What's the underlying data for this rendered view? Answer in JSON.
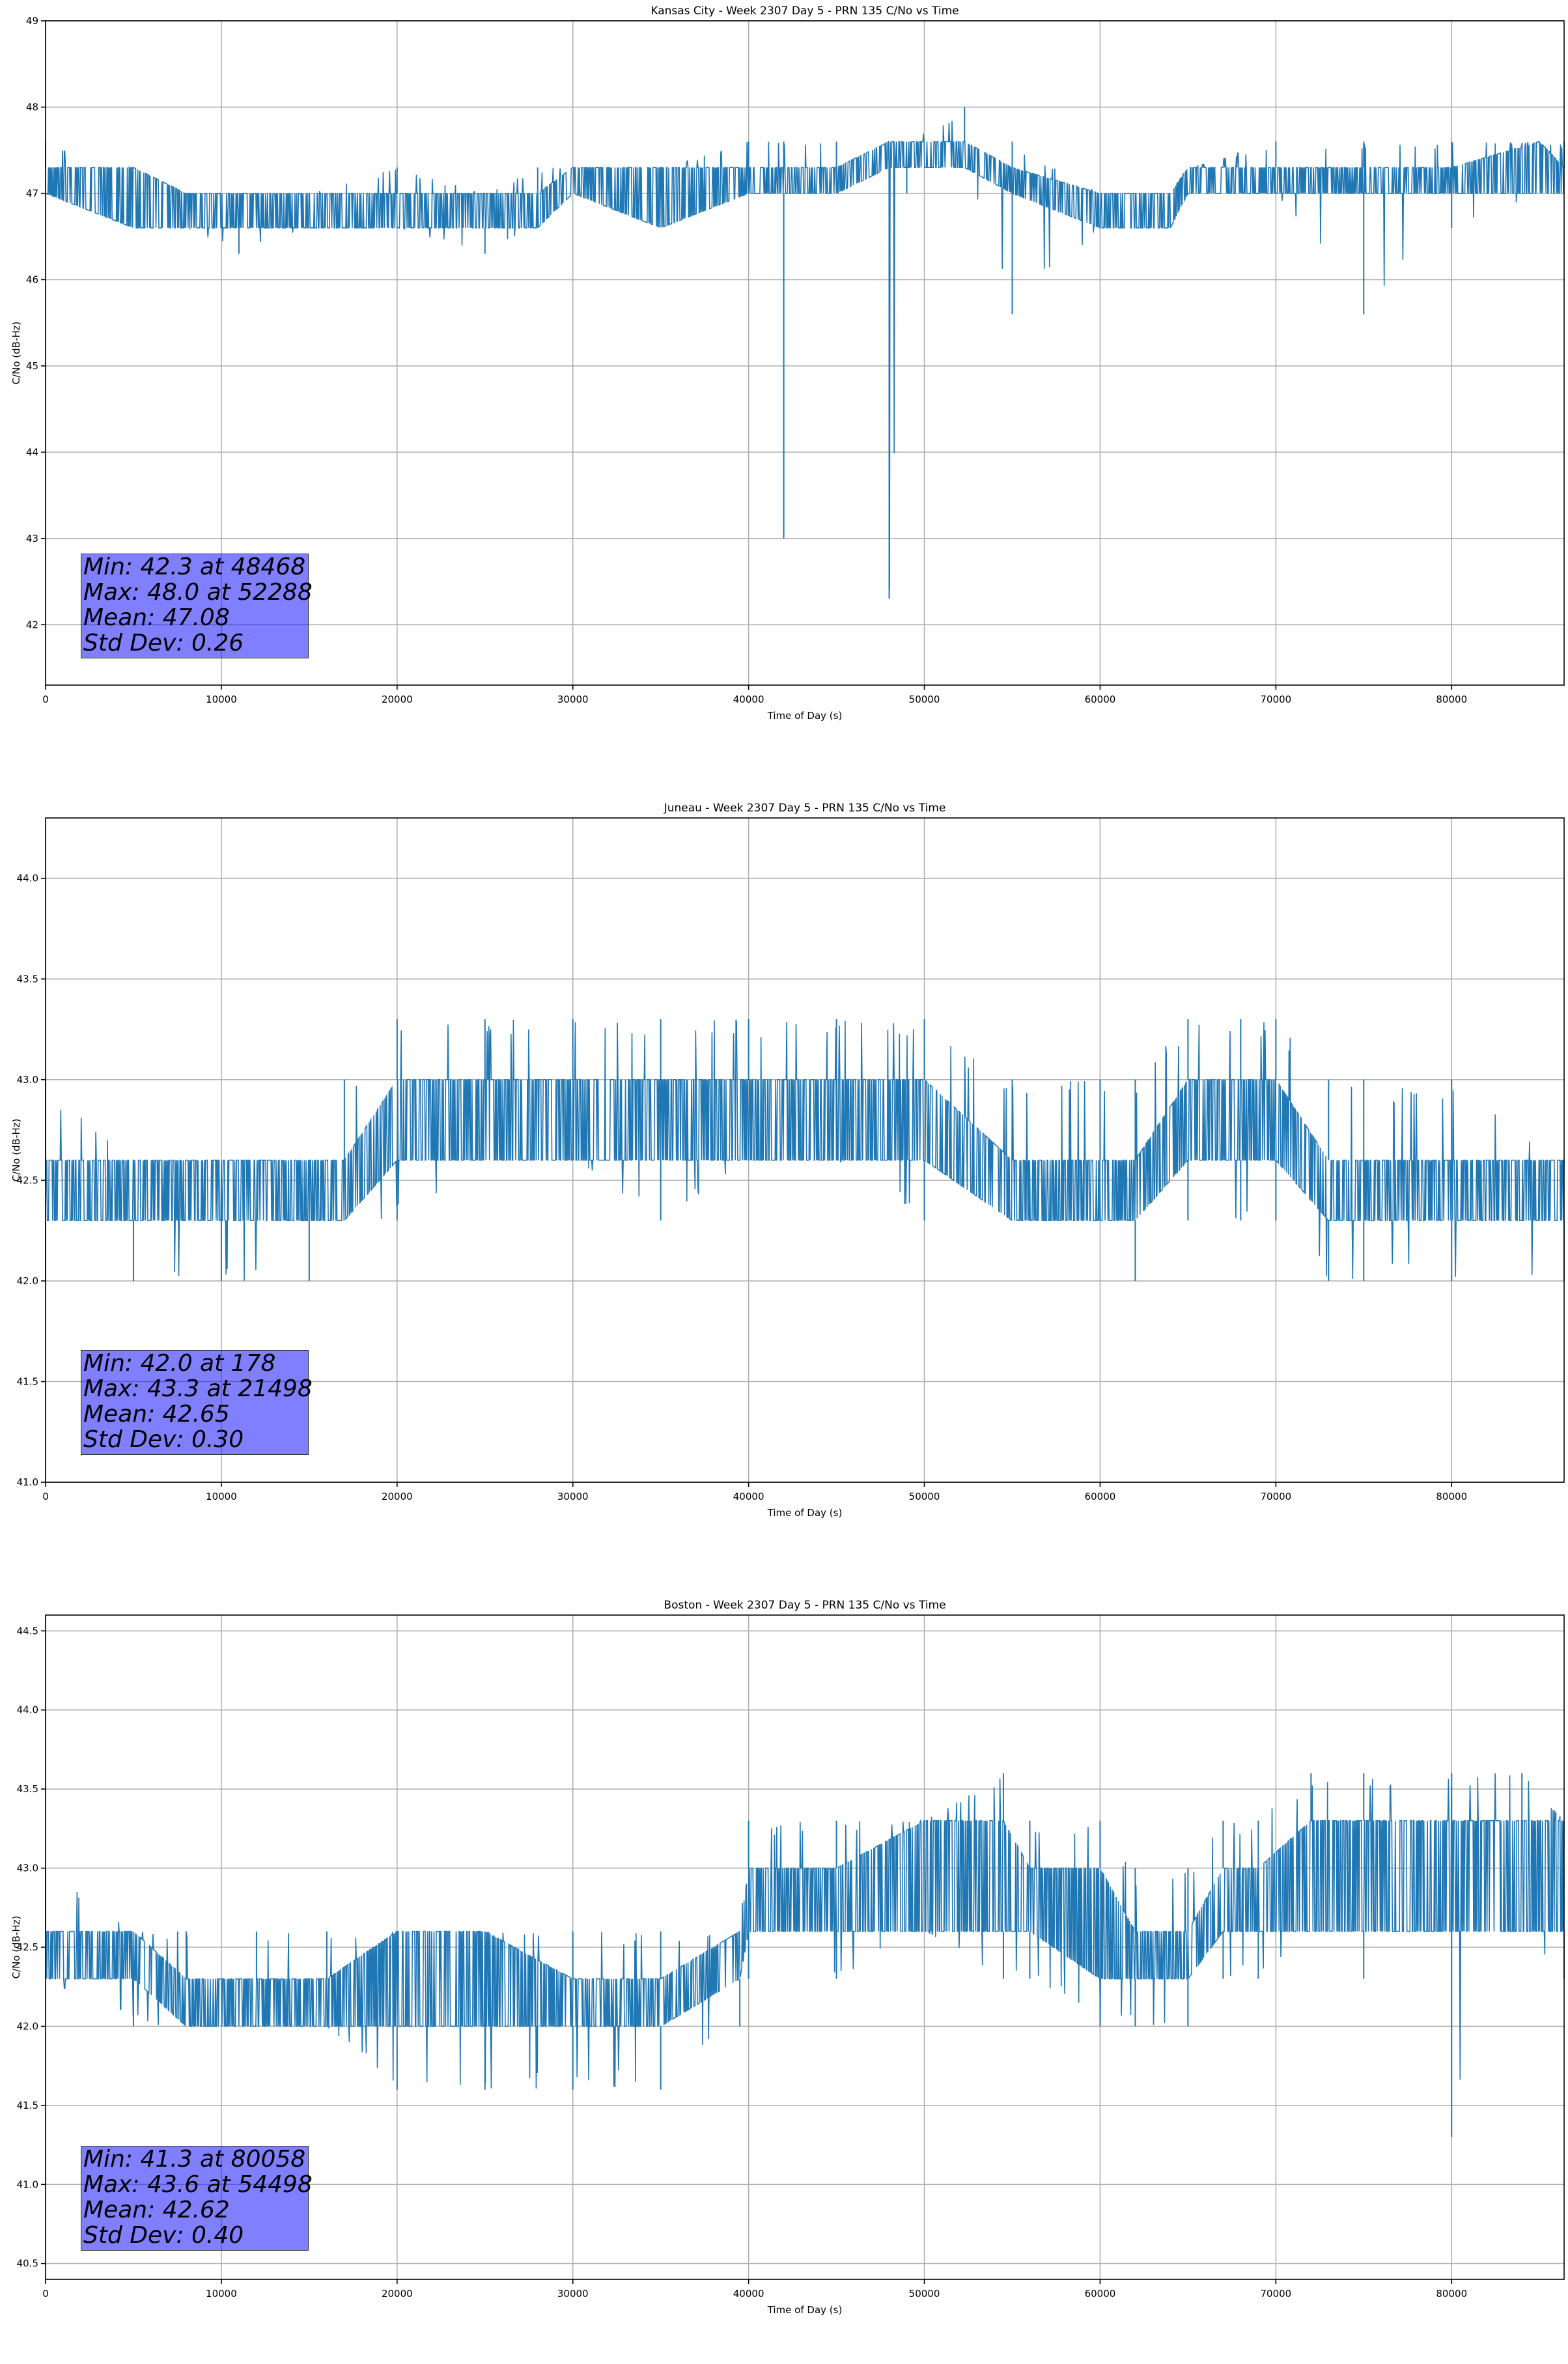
{
  "figure": {
    "colors": {
      "line": "#1f77b4",
      "grid": "#b0b0b0",
      "stats_box": "#8080ff"
    }
  },
  "chart_data": [
    {
      "type": "line",
      "title": "Kansas City - Week 2307 Day 5 - PRN 135 C/No vs Time",
      "xlabel": "Time of Day (s)",
      "ylabel": "C/No (dB-Hz)",
      "xlim": [
        0,
        86400
      ],
      "ylim": [
        41.3,
        49.0
      ],
      "xticks": [
        0,
        10000,
        20000,
        30000,
        40000,
        50000,
        60000,
        70000,
        80000
      ],
      "xtick_labels": [
        "0",
        "10000",
        "20000",
        "30000",
        "40000",
        "50000",
        "60000",
        "70000",
        "80000"
      ],
      "yticks": [
        42,
        43,
        44,
        45,
        46,
        47,
        48,
        49
      ],
      "ytick_labels": [
        "42",
        "43",
        "44",
        "45",
        "46",
        "47",
        "48",
        "49"
      ],
      "grid": true,
      "series": [
        {
          "x": [
            0,
            5000,
            8000,
            11000,
            15000,
            20000,
            25000,
            28000,
            30000,
            35000,
            40000,
            42000,
            45000,
            48000,
            49000,
            52288,
            55000,
            60000,
            64000,
            65000,
            70000,
            75000,
            80000,
            85000,
            86400
          ],
          "low": [
            47.0,
            46.6,
            46.6,
            46.3,
            46.6,
            46.6,
            46.3,
            46.6,
            47.0,
            46.6,
            47.0,
            43.0,
            47.0,
            42.3,
            47.0,
            47.3,
            45.6,
            46.6,
            46.6,
            47.0,
            47.0,
            45.6,
            46.6,
            47.0,
            47.0
          ],
          "high": [
            47.6,
            47.3,
            47.0,
            47.0,
            47.0,
            47.3,
            47.0,
            47.3,
            47.3,
            47.3,
            47.6,
            47.6,
            47.6,
            47.6,
            47.6,
            48.0,
            47.6,
            47.0,
            47.0,
            47.3,
            47.6,
            47.6,
            47.6,
            47.6,
            47.6
          ],
          "band_low": [
            47.0,
            46.6,
            46.6,
            46.6,
            46.6,
            46.6,
            46.6,
            46.6,
            47.0,
            46.6,
            47.0,
            47.0,
            47.0,
            47.3,
            47.3,
            47.3,
            47.0,
            46.6,
            46.6,
            47.0,
            47.0,
            47.0,
            47.0,
            47.0,
            47.0
          ],
          "band_high": [
            47.3,
            47.3,
            47.0,
            47.0,
            47.0,
            47.0,
            47.0,
            47.0,
            47.3,
            47.3,
            47.3,
            47.3,
            47.3,
            47.6,
            47.6,
            47.6,
            47.3,
            47.0,
            47.0,
            47.3,
            47.3,
            47.3,
            47.3,
            47.6,
            47.3
          ]
        }
      ],
      "stats": [
        "Min: 42.3 at 48468",
        "Max: 48.0 at 52288",
        "Mean: 47.08",
        "Std Dev: 0.26"
      ]
    },
    {
      "type": "line",
      "title": "Juneau - Week 2307 Day 5 - PRN 135 C/No vs Time",
      "xlabel": "Time of Day (s)",
      "ylabel": "C/No (dB-Hz)",
      "xlim": [
        0,
        86400
      ],
      "ylim": [
        41.0,
        44.3
      ],
      "xticks": [
        0,
        10000,
        20000,
        30000,
        40000,
        50000,
        60000,
        70000,
        80000
      ],
      "xtick_labels": [
        "0",
        "10000",
        "20000",
        "30000",
        "40000",
        "50000",
        "60000",
        "70000",
        "80000"
      ],
      "yticks": [
        41.0,
        41.5,
        42.0,
        42.5,
        43.0,
        43.5,
        44.0
      ],
      "ytick_labels": [
        "41.0",
        "41.5",
        "42.0",
        "42.5",
        "43.0",
        "43.5",
        "44.0"
      ],
      "grid": true,
      "series": [
        {
          "x": [
            0,
            5000,
            10000,
            15000,
            17000,
            20000,
            25000,
            30000,
            35000,
            40000,
            45000,
            50000,
            55000,
            60000,
            62000,
            65000,
            68000,
            70000,
            73000,
            75000,
            80000,
            86400
          ],
          "low": [
            42.0,
            42.0,
            42.0,
            42.0,
            42.3,
            42.3,
            42.6,
            42.6,
            42.3,
            42.6,
            42.6,
            42.3,
            42.3,
            42.3,
            42.0,
            42.3,
            42.3,
            42.3,
            42.0,
            42.0,
            42.0,
            42.0
          ],
          "high": [
            43.0,
            42.6,
            42.6,
            42.6,
            43.0,
            43.3,
            43.3,
            43.3,
            43.3,
            43.3,
            43.3,
            43.3,
            43.0,
            43.0,
            43.0,
            43.3,
            43.3,
            43.3,
            43.0,
            43.0,
            43.0,
            42.6
          ],
          "band_low": [
            42.3,
            42.3,
            42.3,
            42.3,
            42.3,
            42.6,
            42.6,
            42.6,
            42.6,
            42.6,
            42.6,
            42.6,
            42.3,
            42.3,
            42.3,
            42.6,
            42.6,
            42.6,
            42.3,
            42.3,
            42.3,
            42.3
          ],
          "band_high": [
            42.6,
            42.6,
            42.6,
            42.6,
            42.6,
            43.0,
            43.0,
            43.0,
            43.0,
            43.0,
            43.0,
            43.0,
            42.6,
            42.6,
            42.6,
            43.0,
            43.0,
            43.0,
            42.6,
            42.6,
            42.6,
            42.6
          ]
        }
      ],
      "stats": [
        "Min: 42.0 at 178",
        "Max: 43.3 at 21498",
        "Mean: 42.65",
        "Std Dev: 0.30"
      ]
    },
    {
      "type": "line",
      "title": "Boston - Week 2307 Day 5 - PRN 135 C/No vs Time",
      "xlabel": "Time of Day (s)",
      "ylabel": "C/No (dB-Hz)",
      "xlim": [
        0,
        86400
      ],
      "ylim": [
        40.4,
        44.6
      ],
      "xticks": [
        0,
        10000,
        20000,
        30000,
        40000,
        50000,
        60000,
        70000,
        80000
      ],
      "xtick_labels": [
        "0",
        "10000",
        "20000",
        "30000",
        "40000",
        "50000",
        "60000",
        "70000",
        "80000"
      ],
      "yticks": [
        40.5,
        41.0,
        41.5,
        42.0,
        42.5,
        43.0,
        43.5,
        44.0,
        44.5
      ],
      "ytick_labels": [
        "40.5",
        "41.0",
        "41.5",
        "42.0",
        "42.5",
        "43.0",
        "43.5",
        "44.0",
        "44.5"
      ],
      "grid": true,
      "series": [
        {
          "x": [
            0,
            5000,
            8000,
            12000,
            16000,
            20000,
            25000,
            30000,
            35000,
            39500,
            40000,
            45000,
            50000,
            54498,
            56000,
            60000,
            62000,
            65000,
            67000,
            69000,
            72000,
            75000,
            80000,
            84000,
            86400
          ],
          "low": [
            42.3,
            42.0,
            42.0,
            42.0,
            42.0,
            41.6,
            41.6,
            41.6,
            41.6,
            42.0,
            42.3,
            42.3,
            42.6,
            42.3,
            42.3,
            42.0,
            42.0,
            42.0,
            42.3,
            42.3,
            42.6,
            42.3,
            41.3,
            42.6,
            42.3
          ],
          "high": [
            43.0,
            42.6,
            42.6,
            42.6,
            42.6,
            42.6,
            42.6,
            42.6,
            42.6,
            42.6,
            43.3,
            43.3,
            43.3,
            43.6,
            43.3,
            43.3,
            43.0,
            43.0,
            43.3,
            43.3,
            43.6,
            43.6,
            43.6,
            43.6,
            43.3
          ],
          "band_low": [
            42.3,
            42.3,
            42.0,
            42.0,
            42.0,
            42.0,
            42.0,
            42.0,
            42.0,
            42.3,
            42.6,
            42.6,
            42.6,
            42.6,
            42.6,
            42.3,
            42.3,
            42.3,
            42.6,
            42.6,
            42.6,
            42.6,
            42.6,
            42.6,
            42.6
          ],
          "band_high": [
            42.6,
            42.6,
            42.3,
            42.3,
            42.3,
            42.6,
            42.6,
            42.3,
            42.3,
            42.6,
            43.0,
            43.0,
            43.3,
            43.3,
            43.0,
            43.0,
            42.6,
            42.6,
            43.0,
            43.0,
            43.3,
            43.3,
            43.3,
            43.3,
            43.3
          ]
        }
      ],
      "stats": [
        "Min: 41.3 at 80058",
        "Max: 43.6 at 54498",
        "Mean: 42.62",
        "Std Dev: 0.40"
      ]
    }
  ]
}
